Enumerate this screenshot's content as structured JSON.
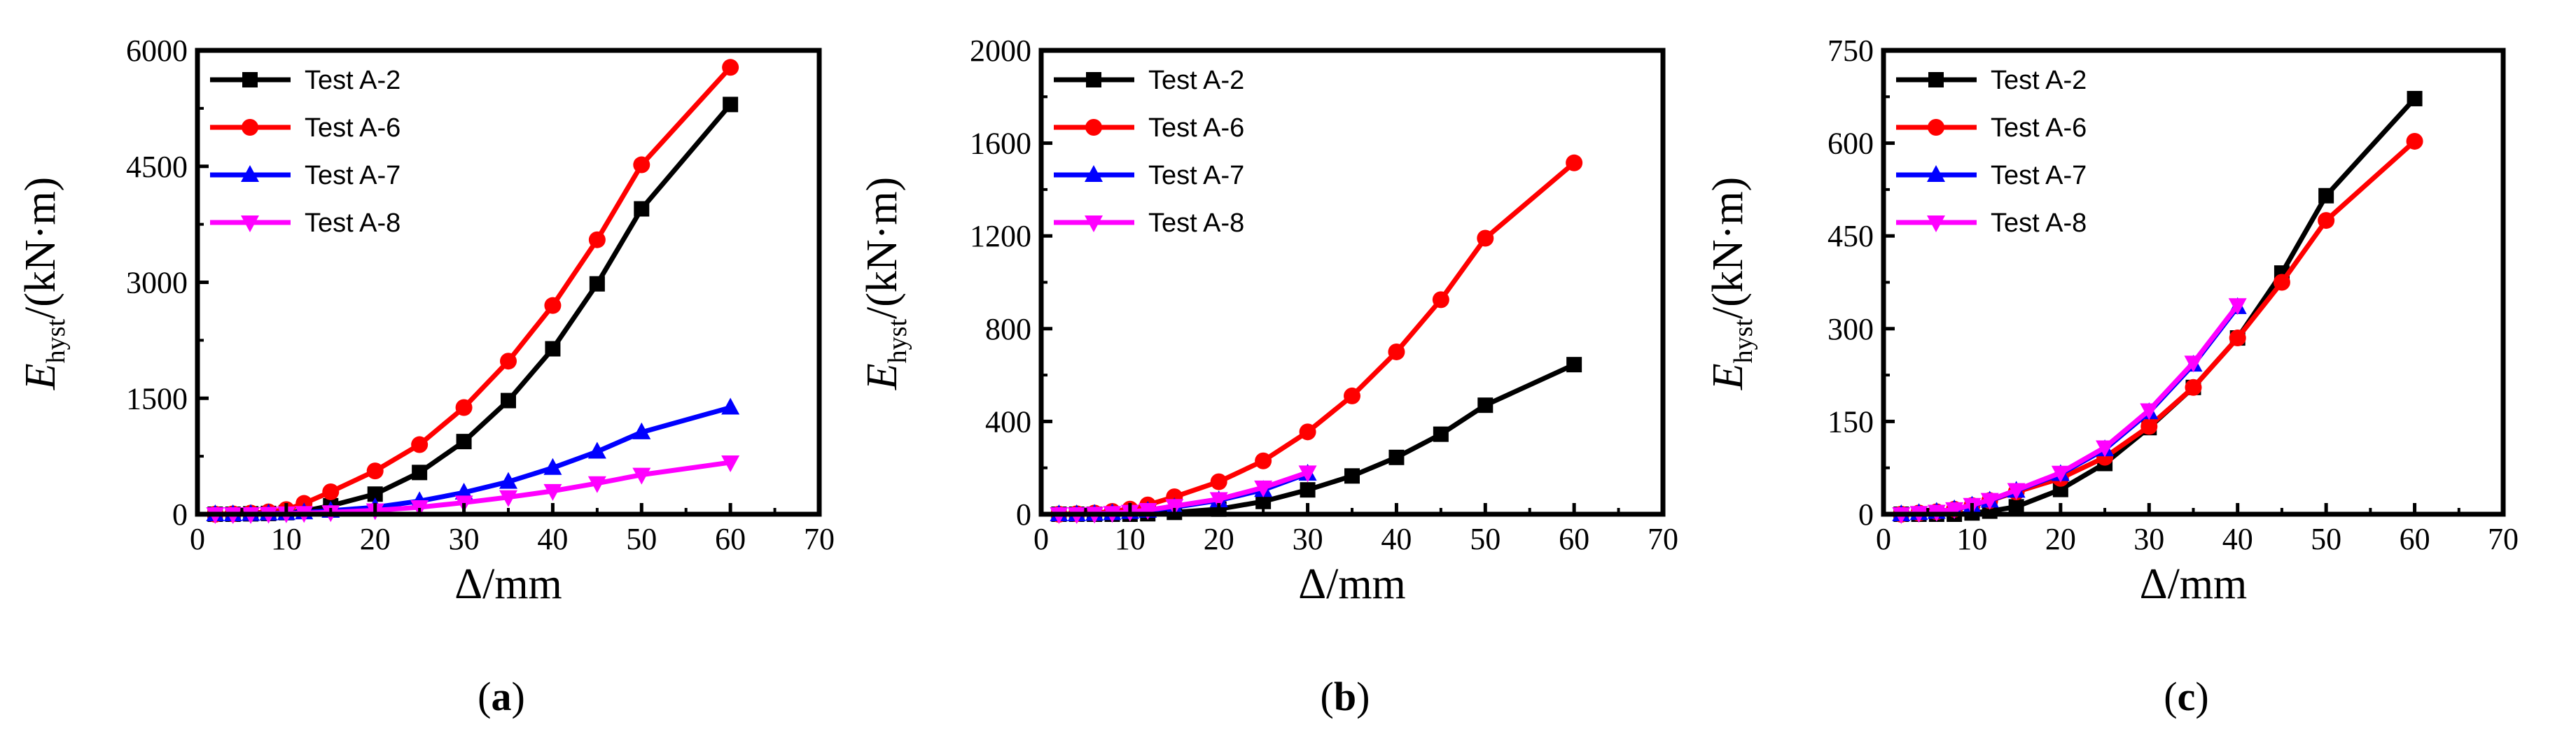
{
  "figure": {
    "panels": [
      "a",
      "b",
      "c"
    ]
  },
  "chart_data": [
    {
      "type": "line",
      "panel_label": "(a)",
      "panel_letter": "a",
      "xlabel": "Δ/mm",
      "ylabel_main": "E",
      "ylabel_sub": "hyst",
      "ylabel_unit": "/(kN·m)",
      "xlim": [
        0,
        70
      ],
      "ylim": [
        0,
        6000
      ],
      "xticks": [
        0,
        10,
        20,
        30,
        40,
        50,
        60,
        70
      ],
      "yticks": [
        0,
        1500,
        3000,
        4500,
        6000
      ],
      "legend_position": "top-left",
      "series": [
        {
          "name": "Test A-2",
          "color": "#000000",
          "marker": "square",
          "x": [
            2,
            4,
            6,
            8,
            10,
            12,
            15,
            20,
            25,
            30,
            35,
            40,
            45,
            50,
            60
          ],
          "y": [
            0,
            0,
            5,
            10,
            20,
            40,
            110,
            260,
            540,
            940,
            1470,
            2140,
            2980,
            3950,
            5300
          ]
        },
        {
          "name": "Test A-6",
          "color": "#ff0000",
          "marker": "circle",
          "x": [
            2,
            4,
            6,
            8,
            10,
            12,
            15,
            20,
            25,
            30,
            35,
            40,
            45,
            50,
            60
          ],
          "y": [
            0,
            5,
            15,
            30,
            60,
            140,
            290,
            560,
            900,
            1380,
            1980,
            2700,
            3550,
            4520,
            5780
          ]
        },
        {
          "name": "Test A-7",
          "color": "#0000ff",
          "marker": "triangle-up",
          "x": [
            2,
            4,
            6,
            8,
            10,
            12,
            15,
            20,
            25,
            30,
            35,
            40,
            45,
            50,
            60
          ],
          "y": [
            0,
            0,
            5,
            10,
            15,
            25,
            45,
            90,
            170,
            280,
            420,
            600,
            810,
            1060,
            1380
          ]
        },
        {
          "name": "Test A-8",
          "color": "#ff00ff",
          "marker": "triangle-down",
          "x": [
            2,
            4,
            6,
            8,
            10,
            12,
            15,
            20,
            25,
            30,
            35,
            40,
            45,
            50,
            60
          ],
          "y": [
            0,
            0,
            0,
            5,
            10,
            15,
            25,
            50,
            90,
            150,
            220,
            300,
            400,
            510,
            670
          ]
        }
      ]
    },
    {
      "type": "line",
      "panel_label": "(b)",
      "panel_letter": "b",
      "xlabel": "Δ/mm",
      "ylabel_main": "E",
      "ylabel_sub": "hyst",
      "ylabel_unit": "/(kN·m)",
      "xlim": [
        0,
        70
      ],
      "ylim": [
        0,
        2000
      ],
      "xticks": [
        0,
        10,
        20,
        30,
        40,
        50,
        60,
        70
      ],
      "yticks": [
        0,
        400,
        800,
        1200,
        1600,
        2000
      ],
      "legend_position": "top-left",
      "series": [
        {
          "name": "Test A-2",
          "color": "#000000",
          "marker": "square",
          "x": [
            2,
            4,
            6,
            8,
            10,
            12,
            15,
            20,
            25,
            30,
            35,
            40,
            45,
            50,
            60
          ],
          "y": [
            0,
            0,
            0,
            0,
            0,
            2,
            8,
            22,
            55,
            105,
            165,
            245,
            345,
            470,
            645
          ]
        },
        {
          "name": "Test A-6",
          "color": "#ff0000",
          "marker": "circle",
          "x": [
            2,
            4,
            6,
            8,
            10,
            12,
            15,
            20,
            25,
            30,
            35,
            40,
            45,
            50,
            60
          ],
          "y": [
            0,
            2,
            5,
            12,
            22,
            40,
            75,
            140,
            230,
            355,
            510,
            700,
            925,
            1190,
            1515
          ]
        },
        {
          "name": "Test A-7",
          "color": "#0000ff",
          "marker": "triangle-up",
          "x": [
            2,
            4,
            6,
            8,
            10,
            12,
            15,
            20,
            25,
            30
          ],
          "y": [
            0,
            0,
            2,
            5,
            10,
            15,
            30,
            60,
            105,
            175
          ]
        },
        {
          "name": "Test A-8",
          "color": "#ff00ff",
          "marker": "triangle-down",
          "x": [
            2,
            4,
            6,
            8,
            10,
            12,
            15,
            20,
            25,
            30
          ],
          "y": [
            0,
            0,
            2,
            5,
            10,
            18,
            35,
            65,
            115,
            180
          ]
        }
      ]
    },
    {
      "type": "line",
      "panel_label": "(c)",
      "panel_letter": "c",
      "xlabel": "Δ/mm",
      "ylabel_main": "E",
      "ylabel_sub": "hyst",
      "ylabel_unit": "/(kN·m)",
      "xlim": [
        0,
        70
      ],
      "ylim": [
        0,
        750
      ],
      "xticks": [
        0,
        10,
        20,
        30,
        40,
        50,
        60,
        70
      ],
      "yticks": [
        0,
        150,
        300,
        450,
        600,
        750
      ],
      "legend_position": "top-left",
      "series": [
        {
          "name": "Test A-2",
          "color": "#000000",
          "marker": "square",
          "x": [
            2,
            4,
            6,
            8,
            10,
            12,
            15,
            20,
            25,
            30,
            35,
            40,
            45,
            50,
            60
          ],
          "y": [
            0,
            0,
            0,
            0,
            2,
            5,
            12,
            40,
            82,
            140,
            205,
            285,
            390,
            515,
            672
          ]
        },
        {
          "name": "Test A-6",
          "color": "#ff0000",
          "marker": "circle",
          "x": [
            2,
            4,
            6,
            8,
            10,
            12,
            15,
            20,
            25,
            30,
            35,
            40,
            45,
            50,
            60
          ],
          "y": [
            0,
            2,
            4,
            8,
            14,
            22,
            36,
            58,
            92,
            142,
            205,
            285,
            375,
            475,
            603
          ]
        },
        {
          "name": "Test A-7",
          "color": "#0000ff",
          "marker": "triangle-up",
          "x": [
            2,
            4,
            6,
            8,
            10,
            12,
            15,
            20,
            25,
            30,
            35,
            40
          ],
          "y": [
            0,
            2,
            4,
            8,
            14,
            22,
            38,
            65,
            105,
            165,
            242,
            335
          ]
        },
        {
          "name": "Test A-8",
          "color": "#ff00ff",
          "marker": "triangle-down",
          "x": [
            2,
            4,
            6,
            8,
            10,
            12,
            15,
            20,
            25,
            30,
            35,
            40
          ],
          "y": [
            0,
            2,
            4,
            8,
            15,
            23,
            39,
            67,
            108,
            168,
            245,
            338
          ]
        }
      ]
    }
  ]
}
